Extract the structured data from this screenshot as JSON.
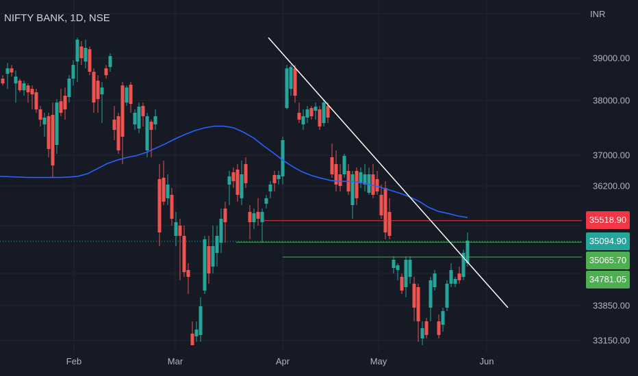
{
  "header": {
    "title": "NIFTY BANK, 1D, NSE",
    "currency": "INR"
  },
  "colors": {
    "bg": "#161a25",
    "grid": "#222631",
    "up": "#26a69a",
    "down": "#ef5350",
    "ma": "#2962ff",
    "trendline": "#ffffff",
    "resistance": "#f23645",
    "support": "#4caf50"
  },
  "price_tags": [
    {
      "label": "35518.90",
      "color": "#f23645"
    },
    {
      "label": "35094.90",
      "color": "#26a69a"
    },
    {
      "label": "35065.70",
      "color": "#4caf50"
    },
    {
      "label": "34781.05",
      "color": "#4caf50"
    }
  ],
  "chart_data": {
    "type": "candlestick",
    "title": "NIFTY BANK, 1D, NSE",
    "y_unit": "INR",
    "y_ticks": [
      "39000.00",
      "38000.00",
      "37000.00",
      "36200.00",
      "33850.00",
      "33150.00"
    ],
    "x_ticks": [
      "Feb",
      "Mar",
      "Apr",
      "May",
      "Jun"
    ],
    "grid": true,
    "series": [
      {
        "name": "MA",
        "type": "line",
        "values": [
          36450,
          36440,
          36430,
          36420,
          36420,
          36420,
          36420,
          36430,
          36450,
          36520,
          36650,
          36780,
          36870,
          36940,
          36990,
          37050,
          37130,
          37210,
          37300,
          37380,
          37450,
          37500,
          37530,
          37530,
          37500,
          37420,
          37320,
          37180,
          37050,
          36880,
          36710,
          36570,
          36470,
          36400,
          36340,
          36320,
          36320,
          36290,
          36230,
          36180,
          36120,
          36060,
          35990,
          35900,
          35780,
          35700,
          35660,
          35610,
          35580
        ]
      }
    ],
    "horizontal_lines": [
      {
        "value": 35518.9,
        "color": "resistance"
      },
      {
        "value": 35094.9,
        "color": "support"
      },
      {
        "value": 35065.7,
        "color": "support"
      }
    ],
    "trendline": [
      [
        39760,
        0
      ],
      [
        33830,
        1
      ]
    ]
  }
}
